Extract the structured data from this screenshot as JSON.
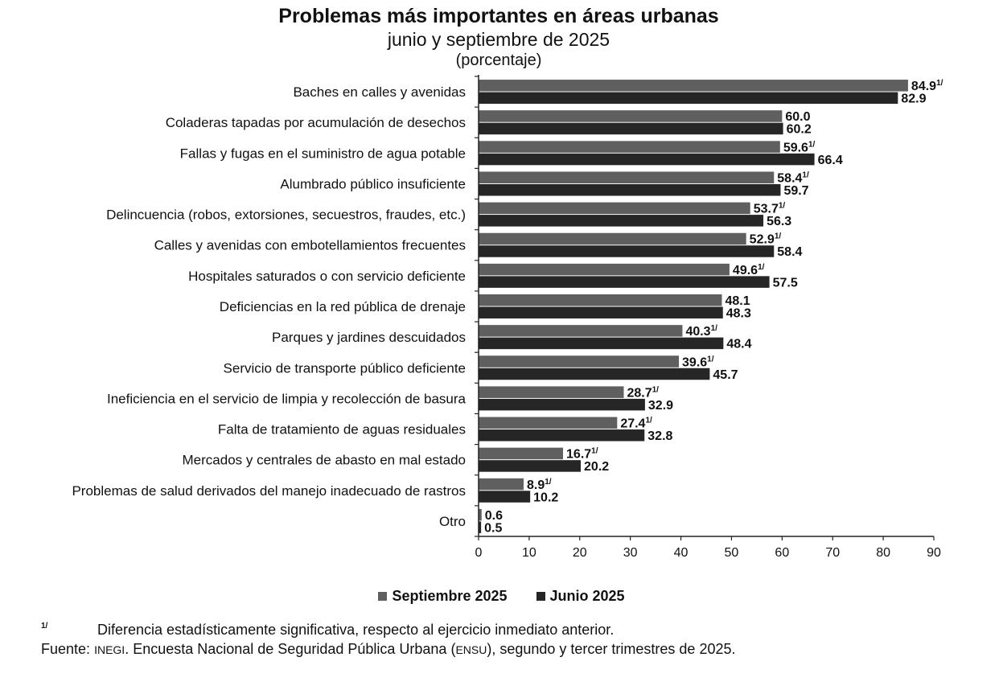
{
  "title": "Problemas más importantes en áreas urbanas",
  "subtitle": "junio y septiembre de 2025",
  "unit": "(porcentaje)",
  "colors": {
    "septiembre": "#5f5f5f",
    "junio": "#262626",
    "axis": "#222222"
  },
  "legend": {
    "septiembre": "Septiembre 2025",
    "junio": "Junio 2025"
  },
  "significance_mark": "1/",
  "footnote": {
    "mark": "1/",
    "text": "Diferencia estadísticamente significativa, respecto al ejercicio inmediato anterior."
  },
  "source": {
    "label": "Fuente:",
    "org": "INEGI",
    "text1": ". Encuesta Nacional de Seguridad Pública Urbana (",
    "abbr": "ENSU",
    "text2": "), segundo y tercer trimestres de 2025."
  },
  "chart_data": {
    "type": "bar",
    "orientation": "horizontal",
    "title": "Problemas más importantes en áreas urbanas",
    "subtitle": "junio y septiembre de 2025",
    "unit": "(porcentaje)",
    "xlim": [
      0,
      90
    ],
    "xticks": [
      0,
      10,
      20,
      30,
      40,
      50,
      60,
      70,
      80,
      90
    ],
    "grid": false,
    "legend_position": "bottom",
    "categories": [
      "Baches en calles y avenidas",
      "Coladeras tapadas por acumulación de desechos",
      "Fallas y fugas en el suministro de agua potable",
      "Alumbrado público insuficiente",
      "Delincuencia (robos, extorsiones, secuestros, fraudes, etc.)",
      "Calles y avenidas con embotellamientos frecuentes",
      "Hospitales saturados o con servicio deficiente",
      "Deficiencias en la red pública de drenaje",
      "Parques y jardines descuidados",
      "Servicio de transporte público deficiente",
      "Ineficiencia en el servicio de limpia y recolección de basura",
      "Falta de tratamiento de aguas residuales",
      "Mercados y centrales de abasto en mal estado",
      "Problemas de salud derivados del manejo inadecuado de rastros",
      "Otro"
    ],
    "series": [
      {
        "name": "Septiembre 2025",
        "values": [
          84.9,
          60.0,
          59.6,
          58.4,
          53.7,
          52.9,
          49.6,
          48.1,
          40.3,
          39.6,
          28.7,
          27.4,
          16.7,
          8.9,
          0.6
        ],
        "significant": [
          true,
          false,
          true,
          true,
          true,
          true,
          true,
          false,
          true,
          true,
          true,
          true,
          true,
          true,
          false
        ]
      },
      {
        "name": "Junio 2025",
        "values": [
          82.9,
          60.2,
          66.4,
          59.7,
          56.3,
          58.4,
          57.5,
          48.3,
          48.4,
          45.7,
          32.9,
          32.8,
          20.2,
          10.2,
          0.5
        ]
      }
    ]
  }
}
